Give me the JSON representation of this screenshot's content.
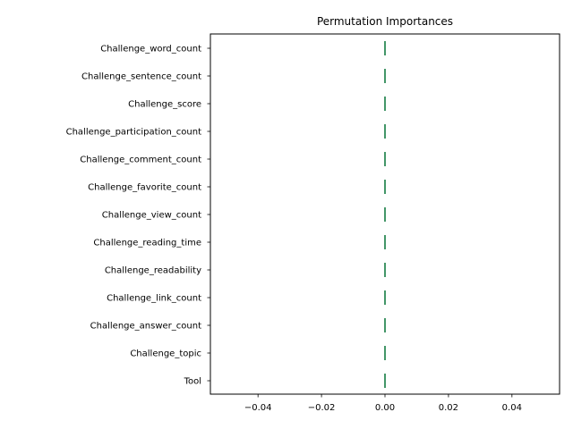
{
  "chart_data": {
    "type": "boxplot",
    "title": "Permutation Importances",
    "orientation": "horizontal",
    "xlim": [
      -0.055,
      0.055
    ],
    "xticks": [
      -0.04,
      -0.02,
      0.0,
      0.02,
      0.04
    ],
    "xtick_labels": [
      "−0.04",
      "−0.02",
      "0.00",
      "0.02",
      "0.04"
    ],
    "xlabel": "",
    "ylabel": "",
    "grid": false,
    "box_color": "#2e8b57",
    "categories": [
      "Challenge_word_count",
      "Challenge_sentence_count",
      "Challenge_score",
      "Challenge_participation_count",
      "Challenge_comment_count",
      "Challenge_favorite_count",
      "Challenge_view_count",
      "Challenge_reading_time",
      "Challenge_readability",
      "Challenge_link_count",
      "Challenge_answer_count",
      "Challenge_topic",
      "Tool"
    ],
    "values": [
      0.0,
      0.0,
      0.0,
      0.0,
      0.0,
      0.0,
      0.0,
      0.0,
      0.0,
      0.0,
      0.0,
      0.0,
      0.0
    ]
  }
}
